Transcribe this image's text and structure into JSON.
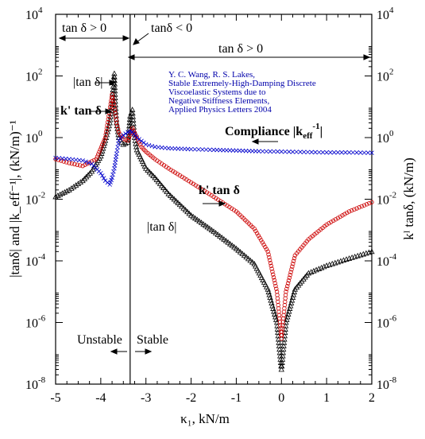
{
  "chart_data": {
    "type": "scatter",
    "xlabel": "κ₁, kN/m",
    "ylabel_left": "|tanδ| and |k_eff⁻¹|, (kN/m)⁻¹",
    "ylabel_right": "kᴵ tanδ, (kN/m)",
    "xlim": [
      -5,
      2
    ],
    "ylim": [
      1e-08,
      10000.0
    ],
    "yscale": "log",
    "x_ticks": [
      "-5",
      "-4",
      "-3",
      "-2",
      "-1",
      "0",
      "1",
      "2"
    ],
    "y_tick_exponents": [
      "-8",
      "-6",
      "-4",
      "-2",
      "0",
      "2",
      "4"
    ],
    "y_tick_base": "10",
    "vline_x": -3.35,
    "series": [
      {
        "name": "|tan δ|",
        "marker": "triangle",
        "color": "#000000",
        "x": [
          -5.0,
          -4.7,
          -4.4,
          -4.2,
          -4.0,
          -3.9,
          -3.8,
          -3.75,
          -3.72,
          -3.7,
          -3.68,
          -3.65,
          -3.6,
          -3.5,
          -3.4,
          -3.35,
          -3.3,
          -3.25,
          -3.2,
          -3.1,
          -3.0,
          -2.8,
          -2.5,
          -2.0,
          -1.5,
          -1.0,
          -0.6,
          -0.3,
          -0.1,
          0.0,
          0.1,
          0.3,
          0.6,
          1.0,
          1.5,
          2.0
        ],
        "y": [
          0.012,
          0.02,
          0.04,
          0.08,
          0.25,
          0.8,
          3,
          12,
          60,
          120,
          15,
          3,
          1,
          0.6,
          0.7,
          5,
          8,
          1,
          0.4,
          0.2,
          0.1,
          0.05,
          0.015,
          0.003,
          0.0009,
          0.00025,
          8e-05,
          1.2e-05,
          1e-06,
          3e-08,
          1e-06,
          1.2e-05,
          4e-05,
          7e-05,
          0.00012,
          0.0002
        ]
      },
      {
        "name": "k' tan δ",
        "marker": "circle",
        "color": "#cc0000",
        "x": [
          -5.0,
          -4.7,
          -4.4,
          -4.1,
          -3.9,
          -3.8,
          -3.75,
          -3.7,
          -3.65,
          -3.6,
          -3.5,
          -3.4,
          -3.35,
          -3.3,
          -3.2,
          -3.1,
          -3.0,
          -2.8,
          -2.5,
          -2.0,
          -1.5,
          -1.0,
          -0.6,
          -0.3,
          -0.1,
          0.0,
          0.1,
          0.3,
          0.6,
          1.0,
          1.5,
          2.0
        ],
        "y": [
          0.2,
          0.15,
          0.12,
          0.2,
          1,
          8,
          25,
          10,
          3,
          1.5,
          0.9,
          0.8,
          1.2,
          2,
          1,
          0.5,
          0.35,
          0.2,
          0.1,
          0.035,
          0.012,
          0.004,
          0.0011,
          0.0002,
          1e-05,
          3e-07,
          1e-05,
          0.00015,
          0.0005,
          0.0015,
          0.004,
          0.008
        ]
      },
      {
        "name": "Compliance |k_eff⁻¹|",
        "marker": "x",
        "color": "#0000cc",
        "x": [
          -5.0,
          -4.7,
          -4.4,
          -4.2,
          -4.0,
          -3.9,
          -3.8,
          -3.75,
          -3.7,
          -3.65,
          -3.6,
          -3.5,
          -3.4,
          -3.35,
          -3.3,
          -3.2,
          -3.0,
          -2.8,
          -2.5,
          -2.0,
          -1.5,
          -1.0,
          -0.5,
          0.0,
          0.5,
          1.0,
          1.5,
          2.0
        ],
        "y": [
          0.22,
          0.2,
          0.18,
          0.14,
          0.07,
          0.04,
          0.03,
          0.05,
          0.1,
          0.3,
          0.8,
          1.2,
          1.5,
          1.6,
          1.5,
          1,
          0.6,
          0.5,
          0.45,
          0.42,
          0.4,
          0.38,
          0.36,
          0.35,
          0.34,
          0.33,
          0.33,
          0.32
        ]
      }
    ],
    "annotations": {
      "region_left": "tan δ > 0",
      "region_mid": "tanδ < 0",
      "region_right": "tan δ > 0",
      "abs_tan": "|tan δ|",
      "k_tan_upper": "k' tan δ",
      "compliance": "Compliance |k",
      "compliance_sub": "eff",
      "compliance_sup": "-1",
      "compliance_end": "|",
      "k_tan_lower": "k' tan δ",
      "abs_tan_lower": "|tan δ|",
      "unstable": "Unstable",
      "stable": "Stable"
    },
    "citation": [
      "Y. C. Wang, R. S. Lakes,",
      "Stable Extremely-High-Damping Discrete",
      "Viscoelastic Systems due to",
      "Negative Stiffness Elements,",
      "Applied Physics Letters 2004"
    ]
  }
}
